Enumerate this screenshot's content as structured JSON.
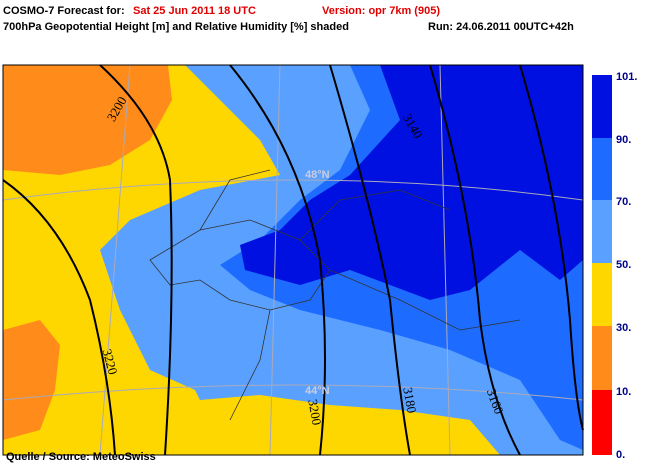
{
  "header": {
    "title_prefix": "COSMO-7 Forecast for:",
    "valid_time": "Sat 25 Jun 2011 18 UTC",
    "version": "Version: opr 7km (905)",
    "field": "700hPa Geopotential Height [m] and Relative Humidity [%] shaded",
    "run": "Run: 24.06.2011 00UTC+42h"
  },
  "map": {
    "contour_labels": [
      "3200",
      "3140",
      "3220",
      "3200",
      "3180",
      "3160"
    ],
    "latitude_labels": [
      "48°N",
      "44°N"
    ]
  },
  "colorbar": {
    "labels": [
      "101.",
      "90.",
      "70.",
      "50.",
      "30.",
      "10.",
      "0."
    ]
  },
  "footer": {
    "source": "Quelle / Source: MeteoSwiss"
  }
}
